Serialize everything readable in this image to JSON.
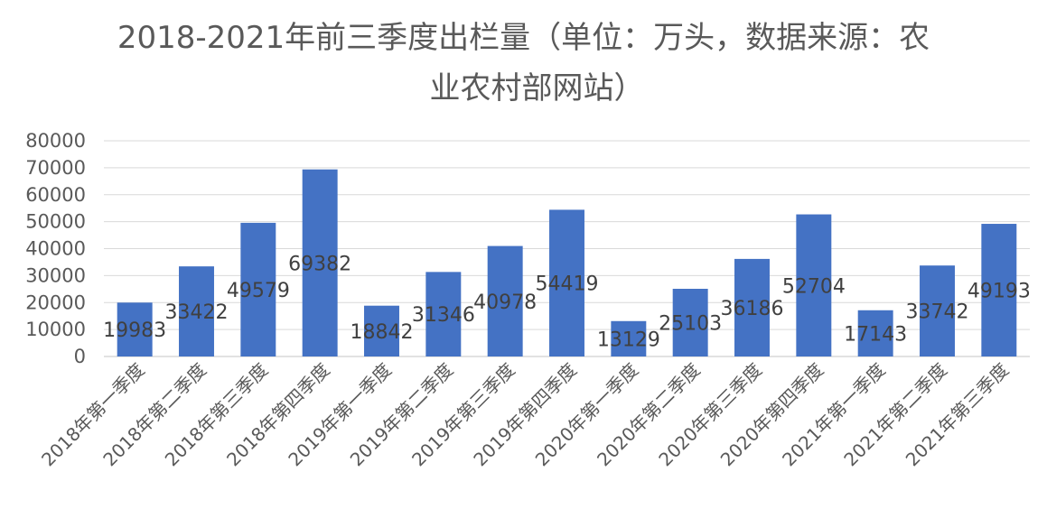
{
  "chart_data": {
    "type": "bar",
    "title_line1": "2018-2021年前三季度出栏量（单位：万头，数据来源：农",
    "title_line2": "业农村部网站）",
    "categories": [
      "2018年第一季度",
      "2018年第二季度",
      "2018年第三季度",
      "2018年第四季度",
      "2019年第一季度",
      "2019年第二季度",
      "2019年第三季度",
      "2019年第四季度",
      "2020年第一季度",
      "2020年第二季度",
      "2020年第三季度",
      "2020年第四季度",
      "2021年第一季度",
      "2021年第二季度",
      "2021年第三季度"
    ],
    "values": [
      19983,
      33422,
      49579,
      69382,
      18842,
      31346,
      40978,
      54419,
      13129,
      25103,
      36186,
      52704,
      17143,
      33742,
      49193
    ],
    "ylim": [
      0,
      80000
    ],
    "yticks": [
      0,
      10000,
      20000,
      30000,
      40000,
      50000,
      60000,
      70000,
      80000
    ],
    "grid": true,
    "legend": "none",
    "bar_color": "#4472C4",
    "grid_color": "#D9D9D9",
    "text_color": "#595959"
  }
}
